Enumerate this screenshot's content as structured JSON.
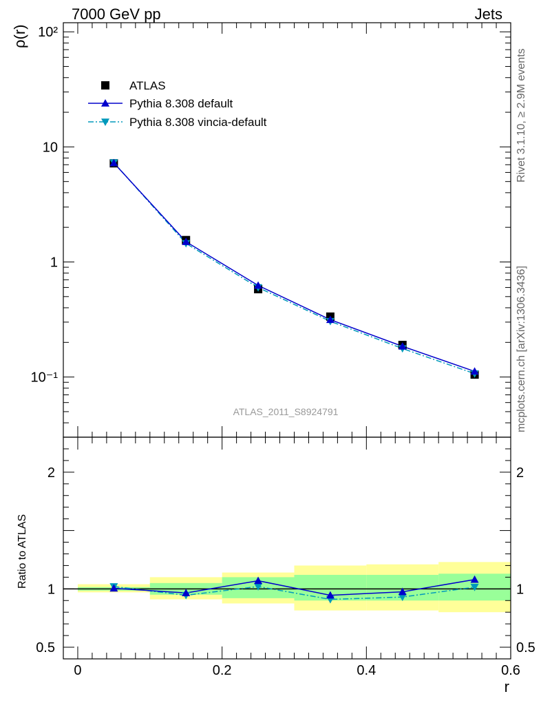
{
  "header": {
    "left": "7000 GeV pp",
    "right": "Jets"
  },
  "side_text": {
    "top": "Rivet 3.1.10, ≥ 2.9M events",
    "bottom": "mcplots.cern.ch [arXiv:1306.3436]"
  },
  "watermark": "ATLAS_2011_S8924791",
  "colors": {
    "atlas": "#000000",
    "default": "#0000cc",
    "vincia": "#0099bb",
    "band_inner": "#99ff99",
    "band_outer": "#ffff99"
  },
  "chart_data": [
    {
      "type": "scatter",
      "panel": "main",
      "yscale": "log",
      "ylabel": "ρ(r)",
      "xlim": [
        -0.02,
        0.6
      ],
      "ylim": [
        0.03,
        120
      ],
      "x": [
        0.05,
        0.15,
        0.25,
        0.35,
        0.45,
        0.55
      ],
      "ytick_labels": [
        "10⁻¹",
        "1",
        "10",
        "10²"
      ],
      "series": [
        {
          "name": "ATLAS",
          "marker": "square",
          "values": [
            7.2,
            1.55,
            0.58,
            0.335,
            0.19,
            0.105
          ]
        },
        {
          "name": "Pythia 8.308 default",
          "marker": "triangle-up",
          "line": "solid",
          "values": [
            7.25,
            1.5,
            0.625,
            0.315,
            0.185,
            0.112
          ]
        },
        {
          "name": "Pythia 8.308 vincia-default",
          "marker": "triangle-down",
          "line": "dashdot",
          "values": [
            7.3,
            1.45,
            0.6,
            0.305,
            0.177,
            0.107
          ]
        }
      ],
      "legend_position": "top-left"
    },
    {
      "type": "line",
      "panel": "ratio",
      "ylabel": "Ratio to ATLAS",
      "xlabel": "r",
      "xlim": [
        -0.02,
        0.6
      ],
      "ylim": [
        0.4,
        2.3
      ],
      "xticks": [
        0,
        0.2,
        0.4,
        0.6
      ],
      "xtick_labels": [
        "0",
        "0.2",
        "0.4",
        "0.6"
      ],
      "yticks": [
        0.5,
        1,
        2
      ],
      "ytick_labels": [
        "0.5",
        "1",
        "2"
      ],
      "x": [
        0.05,
        0.15,
        0.25,
        0.35,
        0.45,
        0.55
      ],
      "bins": [
        [
          0.0,
          0.1
        ],
        [
          0.1,
          0.2
        ],
        [
          0.2,
          0.3
        ],
        [
          0.3,
          0.4
        ],
        [
          0.4,
          0.5
        ],
        [
          0.5,
          0.6
        ]
      ],
      "band_inner": [
        [
          0.985,
          1.015
        ],
        [
          0.95,
          1.05
        ],
        [
          0.92,
          1.1
        ],
        [
          0.9,
          1.12
        ],
        [
          0.9,
          1.12
        ],
        [
          0.9,
          1.13
        ]
      ],
      "band_outer": [
        [
          0.97,
          1.04
        ],
        [
          0.91,
          1.1
        ],
        [
          0.875,
          1.14
        ],
        [
          0.815,
          1.2
        ],
        [
          0.815,
          1.21
        ],
        [
          0.8,
          1.23
        ]
      ],
      "series": [
        {
          "name": "Pythia 8.308 default",
          "marker": "triangle-up",
          "line": "solid",
          "values": [
            1.005,
            0.965,
            1.07,
            0.945,
            0.975,
            1.08
          ]
        },
        {
          "name": "Pythia 8.308 vincia-default",
          "marker": "triangle-down",
          "line": "dashdot",
          "values": [
            1.02,
            0.945,
            1.02,
            0.91,
            0.93,
            1.015
          ]
        }
      ]
    }
  ]
}
